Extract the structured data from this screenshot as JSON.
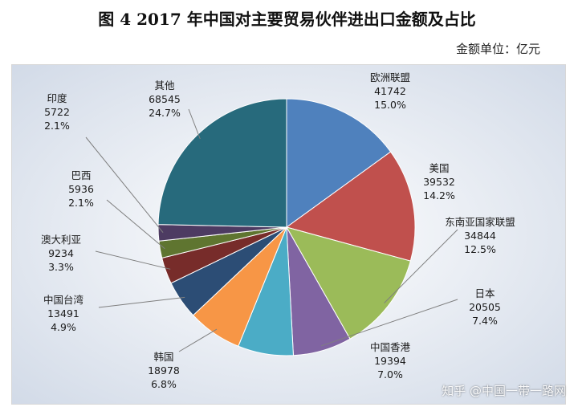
{
  "title": "图 4   2017 年中国对主要贸易伙伴进出口金额及占比",
  "unit_label": "金额单位：亿元",
  "watermark": "知乎 @中国一带一路网",
  "chart_data": {
    "type": "pie",
    "title": "图 4   2017 年中国对主要贸易伙伴进出口金额及占比",
    "unit": "亿元",
    "slices": [
      {
        "name": "欧洲联盟",
        "value": 41742,
        "percent": "15.0%",
        "color": "#4f81bd"
      },
      {
        "name": "美国",
        "value": 39532,
        "percent": "14.2%",
        "color": "#c0504d"
      },
      {
        "name": "东南亚国家联盟",
        "value": 34844,
        "percent": "12.5%",
        "color": "#9bbb59"
      },
      {
        "name": "日本",
        "value": 20505,
        "percent": "7.4%",
        "color": "#8064a2"
      },
      {
        "name": "中国香港",
        "value": 19394,
        "percent": "7.0%",
        "color": "#4bacc6"
      },
      {
        "name": "韩国",
        "value": 18978,
        "percent": "6.8%",
        "color": "#f79646"
      },
      {
        "name": "中国台湾",
        "value": 13491,
        "percent": "4.9%",
        "color": "#2c4d75"
      },
      {
        "name": "澳大利亚",
        "value": 9234,
        "percent": "3.3%",
        "color": "#772c2a"
      },
      {
        "name": "巴西",
        "value": 5936,
        "percent": "2.1%",
        "color": "#5f7530"
      },
      {
        "name": "印度",
        "value": 5722,
        "percent": "2.1%",
        "color": "#4d3b62"
      },
      {
        "name": "其他",
        "value": 68545,
        "percent": "24.7%",
        "color": "#276a7c"
      }
    ]
  }
}
